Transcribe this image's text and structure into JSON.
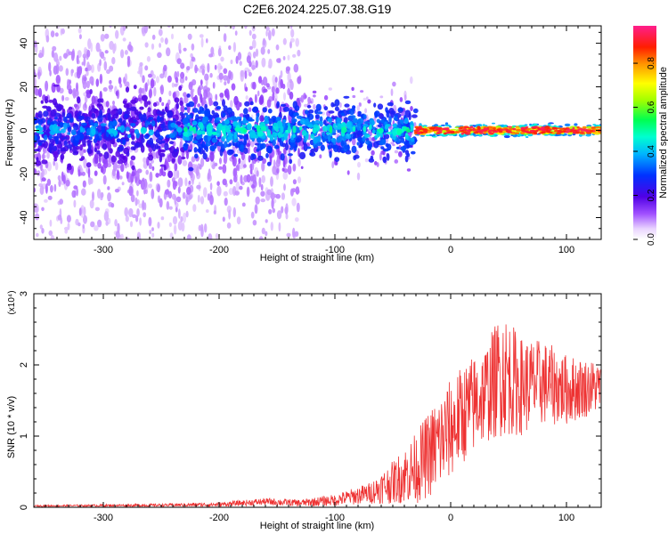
{
  "title": "C2E6.2024.225.07.38.G19",
  "chart_data": [
    {
      "type": "heatmap",
      "xlabel": "Height of straight line (km)",
      "ylabel": "Frequency (Hz)",
      "xlim": [
        -360,
        130
      ],
      "ylim": [
        -50,
        48
      ],
      "x_ticks": [
        -300,
        -200,
        -100,
        0,
        100
      ],
      "y_ticks": [
        -40,
        -20,
        0,
        20,
        40
      ],
      "colorbar": {
        "label": "Normalized spectral amplitude",
        "range": [
          0,
          0.97
        ],
        "ticks": [
          0.0,
          0.2,
          0.4,
          0.6,
          0.8
        ],
        "tick_labels": [
          "0.0",
          "0.2",
          "0.4",
          "0.6",
          "0.8"
        ]
      },
      "description_of_content": [
        {
          "x_range": [
            -360,
            -130
          ],
          "freq_spread_hz": 45,
          "amplitude": [
            0.05,
            0.2
          ]
        },
        {
          "x_range": [
            -230,
            -30
          ],
          "freq_spread_hz": 8,
          "amplitude": [
            0.2,
            0.55
          ]
        },
        {
          "x_range": [
            -30,
            130
          ],
          "freq_spread_hz": 2,
          "amplitude": [
            0.6,
            0.97
          ]
        }
      ]
    },
    {
      "type": "line",
      "xlabel": "Height of straight line (km)",
      "ylabel": "SNR (10 * v/v)",
      "y_multiplier": "(x10⁴)",
      "xlim": [
        -360,
        130
      ],
      "ylim": [
        0,
        3
      ],
      "x_ticks": [
        -300,
        -200,
        -100,
        0,
        100
      ],
      "y_ticks": [
        0,
        1,
        2,
        3
      ],
      "series_color": "#ee3333",
      "envelope": {
        "x": [
          -360,
          -250,
          -200,
          -160,
          -130,
          -100,
          -70,
          -50,
          -30,
          -10,
          10,
          30,
          45,
          60,
          80,
          100,
          130
        ],
        "mean": [
          0.02,
          0.03,
          0.04,
          0.08,
          0.06,
          0.1,
          0.2,
          0.35,
          0.55,
          0.9,
          1.3,
          1.6,
          1.9,
          1.7,
          1.75,
          1.65,
          1.7
        ],
        "spread": [
          0.01,
          0.02,
          0.03,
          0.05,
          0.05,
          0.08,
          0.15,
          0.3,
          0.5,
          0.7,
          0.7,
          0.7,
          0.9,
          0.7,
          0.6,
          0.5,
          0.35
        ]
      }
    }
  ]
}
